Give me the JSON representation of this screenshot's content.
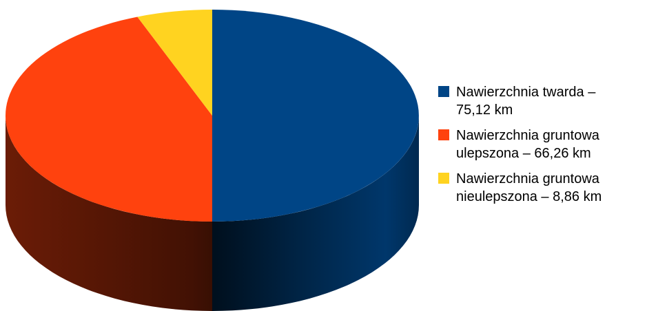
{
  "chart_data": {
    "type": "pie",
    "style": "3d",
    "title": "",
    "legend_position": "right",
    "slices": [
      {
        "label": "Nawierzchnia twarda – 75,12 km",
        "label_lines": [
          "Nawierzchnia twarda –",
          "75,12 km"
        ],
        "value": 75.12,
        "unit": "km",
        "color": "#004586"
      },
      {
        "label": "Nawierzchnia gruntowa ulepszona – 66,26 km",
        "label_lines": [
          "Nawierzchnia gruntowa",
          "ulepszona – 66,26 km"
        ],
        "value": 66.26,
        "unit": "km",
        "color": "#FF420E"
      },
      {
        "label": "Nawierzchnia gruntowa nieulepszona – 8,86 km",
        "label_lines": [
          "Nawierzchnia gruntowa",
          "nieulepszona – 8,86 km"
        ],
        "value": 8.86,
        "unit": "km",
        "color": "#FFD320"
      }
    ]
  }
}
